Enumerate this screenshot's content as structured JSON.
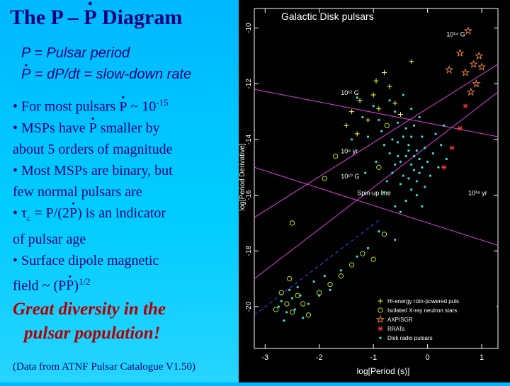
{
  "slide": {
    "title_pre": "The P – ",
    "title_pdot": "P",
    "title_post": " Diagram",
    "def_p": "P = Pulsar period",
    "def_pdot_sym": "P",
    "def_pdot_rest": " = dP/dt = slow-down rate",
    "b1_pre": "• For most pulsars ",
    "b1_p": "P",
    "b1_mid": " ~ 10",
    "b1_sup": "-15",
    "b2_pre": "• MSPs have ",
    "b2_p": "P",
    "b2_post": " smaller by",
    "b2_line2": "about 5 orders of magnitude",
    "b3_line1": "• Most MSPs are binary, but",
    "b3_line2": "few normal pulsars are",
    "b4_pre": "• τ",
    "b4_sub": "c",
    "b4_mid": " = P/(2",
    "b4_p": "P",
    "b4_post": ") is an indicator",
    "b4_line2": "of pulsar age",
    "b5_line1": "• Surface dipole magnetic",
    "b5_pre": "field ~ (P",
    "b5_p": "P",
    "b5_post": ")",
    "b5_sup": "1/2",
    "great_line1": "Great diversity in the",
    "great_line2": "pulsar population!",
    "source": "(Data from ATNF Pulsar Catalogue V1.50)"
  },
  "chart_data": {
    "type": "scatter",
    "title": "Galactic Disk pulsars",
    "xlabel": "log[Period (s)]",
    "ylabel": "log[Period Derivative]",
    "xlim": [
      -3.2,
      1.3
    ],
    "ylim": [
      -21.5,
      -9.3
    ],
    "x_ticks": [
      -3,
      -2,
      -1,
      0,
      1
    ],
    "x_tick_labels": [
      "-3",
      "-2",
      "-1",
      "0",
      "1"
    ],
    "y_ticks": [
      -10,
      -12,
      -14,
      -16,
      -18,
      -20
    ],
    "y_tick_labels": [
      "-10",
      "-12",
      "-14",
      "-16",
      "-18",
      "-20"
    ],
    "lines": [
      {
        "label": "10^14 G",
        "points": [
          [
            -3.2,
            -16.8
          ],
          [
            1.3,
            -11.3
          ]
        ],
        "color": "#e040e0"
      },
      {
        "label": "10^12 G",
        "points": [
          [
            -3.2,
            -12.2
          ],
          [
            1.3,
            -13.9
          ]
        ],
        "color": "#e040e0"
      },
      {
        "label": "10^10 G",
        "points": [
          [
            -3.2,
            -15.0
          ],
          [
            1.3,
            -17.8
          ]
        ],
        "color": "#e040e0"
      },
      {
        "label": "10^9 yr",
        "points": [
          [
            -3.2,
            -19.0
          ],
          [
            1.3,
            -12.3
          ]
        ],
        "color": "#e040e0"
      },
      {
        "label": "Spin-up line",
        "points": [
          [
            -3.2,
            -20.3
          ],
          [
            -0.9,
            -16.9
          ]
        ],
        "color": "#3050ff",
        "dashed": true
      }
    ],
    "line_labels": [
      {
        "text": "10¹⁴ G",
        "x": 0.35,
        "y": -10.3
      },
      {
        "text": "10¹² G",
        "x": -1.6,
        "y": -12.4
      },
      {
        "text": "10¹⁰ G",
        "x": -1.6,
        "y": -15.4
      },
      {
        "text": "10⁹ yr",
        "x": -1.6,
        "y": -14.5
      },
      {
        "text": "Spin-up line",
        "x": -1.3,
        "y": -16.0
      },
      {
        "text": "10¹⁸ yr",
        "x": 0.75,
        "y": -16.0
      }
    ],
    "series": [
      {
        "name": "Disk radio pulsars",
        "marker": "dot",
        "color": "#33e0e0",
        "points": [
          [
            -0.5,
            -14.8
          ],
          [
            -0.4,
            -14.6
          ],
          [
            -0.3,
            -14.9
          ],
          [
            -0.2,
            -14.4
          ],
          [
            -0.25,
            -15.1
          ],
          [
            -0.35,
            -14.2
          ],
          [
            -0.45,
            -15.3
          ],
          [
            -0.15,
            -14.7
          ],
          [
            -0.1,
            -15.0
          ],
          [
            -0.3,
            -13.9
          ],
          [
            -0.55,
            -14.1
          ],
          [
            -0.6,
            -14.9
          ],
          [
            -0.2,
            -15.5
          ],
          [
            -0.4,
            -13.6
          ],
          [
            -0.05,
            -14.3
          ],
          [
            -0.5,
            -15.6
          ],
          [
            -0.3,
            -15.8
          ],
          [
            -0.7,
            -14.5
          ],
          [
            -0.65,
            -15.2
          ],
          [
            0.0,
            -14.8
          ],
          [
            0.05,
            -15.3
          ],
          [
            -0.1,
            -13.9
          ],
          [
            -0.25,
            -13.5
          ],
          [
            -0.55,
            -13.4
          ],
          [
            -0.8,
            -14.2
          ],
          [
            -0.85,
            -13.7
          ],
          [
            -0.75,
            -15.5
          ],
          [
            -0.4,
            -16.2
          ],
          [
            -0.2,
            -16.0
          ],
          [
            0.1,
            -14.5
          ],
          [
            -0.6,
            -13.0
          ],
          [
            -0.9,
            -13.3
          ],
          [
            -0.3,
            -12.9
          ],
          [
            -0.7,
            -12.6
          ],
          [
            -1.0,
            -12.8
          ],
          [
            -0.45,
            -12.4
          ],
          [
            -0.15,
            -13.2
          ],
          [
            0.15,
            -13.8
          ],
          [
            0.2,
            -15.0
          ],
          [
            -0.95,
            -14.8
          ],
          [
            -1.1,
            -13.9
          ],
          [
            -1.2,
            -13.2
          ],
          [
            -0.5,
            -16.6
          ],
          [
            -0.1,
            -16.4
          ],
          [
            0.25,
            -14.2
          ],
          [
            -0.35,
            -15.4
          ],
          [
            -0.55,
            -14.6
          ],
          [
            -0.45,
            -13.9
          ],
          [
            -0.25,
            -14.6
          ],
          [
            -0.65,
            -14.0
          ],
          [
            -0.15,
            -15.2
          ],
          [
            -0.35,
            -14.4
          ],
          [
            -0.05,
            -15.7
          ],
          [
            -0.8,
            -15.9
          ],
          [
            -0.6,
            -16.4
          ],
          [
            0.3,
            -13.5
          ],
          [
            0.35,
            -14.7
          ],
          [
            -1.3,
            -12.5
          ],
          [
            -1.15,
            -15.2
          ],
          [
            -1.4,
            -14.0
          ],
          [
            -2.0,
            -19.6
          ],
          [
            -2.2,
            -19.9
          ],
          [
            -2.5,
            -19.7
          ],
          [
            -2.6,
            -20.2
          ],
          [
            -2.4,
            -19.3
          ],
          [
            -2.7,
            -19.8
          ],
          [
            -2.3,
            -20.4
          ],
          [
            -2.55,
            -19.4
          ],
          [
            -2.1,
            -19.1
          ],
          [
            -1.9,
            -18.9
          ],
          [
            -2.45,
            -20.1
          ],
          [
            -2.65,
            -20.5
          ],
          [
            -1.6,
            -18.7
          ],
          [
            -1.3,
            -18.2
          ],
          [
            -0.9,
            -17.3
          ],
          [
            -0.6,
            -17.6
          ],
          [
            -1.1,
            -17.9
          ],
          [
            -2.75,
            -20.0
          ],
          [
            -2.35,
            -19.6
          ],
          [
            -1.8,
            -19.4
          ]
        ]
      },
      {
        "name": "Isolated X-ray neutron stars",
        "marker": "circle",
        "color": "#c8ff00",
        "points": [
          [
            -2.6,
            -19.9
          ],
          [
            -2.5,
            -20.2
          ],
          [
            -2.4,
            -19.6
          ],
          [
            -2.3,
            -19.9
          ],
          [
            -2.7,
            -19.5
          ],
          [
            -2.2,
            -20.3
          ],
          [
            -2.0,
            -19.5
          ],
          [
            -1.8,
            -19.2
          ],
          [
            -1.6,
            -18.9
          ],
          [
            -1.4,
            -18.5
          ],
          [
            -1.2,
            -18.1
          ],
          [
            -1.0,
            -18.3
          ],
          [
            -0.8,
            -17.4
          ],
          [
            -2.5,
            -17.0
          ],
          [
            -1.9,
            -15.4
          ],
          [
            -1.7,
            -14.6
          ],
          [
            -0.9,
            -15.0
          ],
          [
            -0.75,
            -13.5
          ],
          [
            -2.55,
            -19.0
          ],
          [
            -2.8,
            -20.1
          ]
        ]
      },
      {
        "name": "Hi-energy rotn-powered puls",
        "marker": "cross",
        "color": "#ffff44",
        "points": [
          [
            -1.25,
            -12.6
          ],
          [
            -1.4,
            -13.0
          ],
          [
            -1.0,
            -12.4
          ],
          [
            -0.8,
            -11.6
          ],
          [
            -0.7,
            -12.1
          ],
          [
            -1.1,
            -13.3
          ],
          [
            -0.9,
            -12.9
          ],
          [
            -1.3,
            -13.8
          ],
          [
            -0.6,
            -12.7
          ],
          [
            -1.5,
            -13.5
          ],
          [
            -0.95,
            -11.9
          ],
          [
            -0.5,
            -13.1
          ],
          [
            -0.3,
            -11.2
          ]
        ]
      },
      {
        "name": "AXP/SGR",
        "marker": "star",
        "color": "#ff8844",
        "points": [
          [
            0.75,
            -10.1
          ],
          [
            0.6,
            -10.9
          ],
          [
            0.85,
            -11.3
          ],
          [
            0.95,
            -11.0
          ],
          [
            0.7,
            -11.6
          ],
          [
            0.4,
            -11.5
          ],
          [
            0.9,
            -12.0
          ],
          [
            1.0,
            -11.4
          ],
          [
            0.8,
            -12.3
          ]
        ]
      },
      {
        "name": "RRATs",
        "marker": "asterisk",
        "color": "#ff3333",
        "points": [
          [
            0.6,
            -13.6
          ],
          [
            0.45,
            -14.3
          ],
          [
            0.3,
            -15.0
          ],
          [
            0.7,
            -12.8
          ]
        ]
      }
    ],
    "legend_position": "bottom-right",
    "grid": false
  }
}
